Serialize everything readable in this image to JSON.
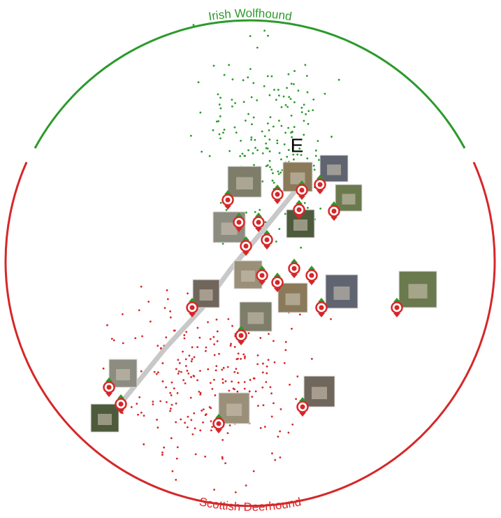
{
  "top_label": "Irish Wolfhound",
  "bottom_label": "Scottish Deerhound",
  "marker": "E"
}
